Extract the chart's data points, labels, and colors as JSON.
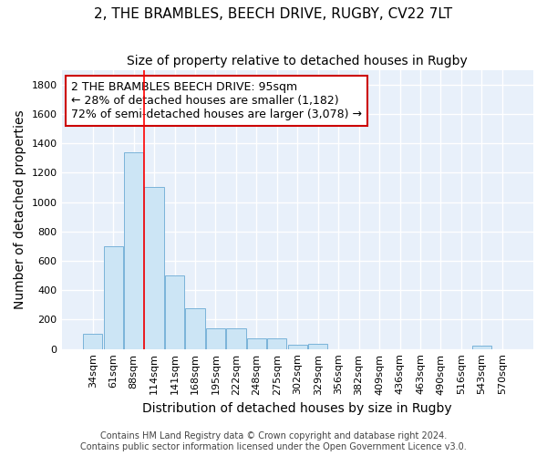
{
  "title": "2, THE BRAMBLES, BEECH DRIVE, RUGBY, CV22 7LT",
  "subtitle": "Size of property relative to detached houses in Rugby",
  "xlabel": "Distribution of detached houses by size in Rugby",
  "ylabel": "Number of detached properties",
  "bar_labels": [
    "34sqm",
    "61sqm",
    "88sqm",
    "114sqm",
    "141sqm",
    "168sqm",
    "195sqm",
    "222sqm",
    "248sqm",
    "275sqm",
    "302sqm",
    "329sqm",
    "356sqm",
    "382sqm",
    "409sqm",
    "436sqm",
    "463sqm",
    "490sqm",
    "516sqm",
    "543sqm",
    "570sqm"
  ],
  "bar_heights": [
    105,
    700,
    1340,
    1100,
    500,
    275,
    140,
    140,
    75,
    75,
    30,
    35,
    0,
    0,
    0,
    0,
    0,
    0,
    0,
    20,
    0
  ],
  "bar_color": "#cce5f5",
  "bar_edge_color": "#7ab3d9",
  "figure_bg": "#ffffff",
  "axes_bg": "#e8f0fa",
  "grid_color": "#ffffff",
  "red_line_x": 2.5,
  "annotation_text": "2 THE BRAMBLES BEECH DRIVE: 95sqm\n← 28% of detached houses are smaller (1,182)\n72% of semi-detached houses are larger (3,078) →",
  "annotation_box_facecolor": "#ffffff",
  "annotation_box_edgecolor": "#cc0000",
  "footer_text": "Contains HM Land Registry data © Crown copyright and database right 2024.\nContains public sector information licensed under the Open Government Licence v3.0.",
  "ylim": [
    0,
    1900
  ],
  "yticks": [
    0,
    200,
    400,
    600,
    800,
    1000,
    1200,
    1400,
    1600,
    1800
  ],
  "title_fontsize": 11,
  "subtitle_fontsize": 10,
  "axis_label_fontsize": 10,
  "tick_fontsize": 8,
  "annotation_fontsize": 9,
  "footer_fontsize": 7
}
